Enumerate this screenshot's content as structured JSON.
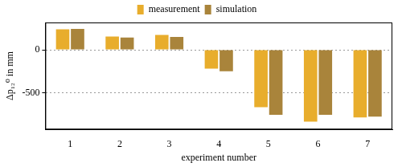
{
  "chart_data": {
    "type": "bar",
    "x_label": "experiment number",
    "y_label": "Δp₁₂⁰ in mm",
    "categories": [
      "1",
      "2",
      "3",
      "4",
      "5",
      "6",
      "7"
    ],
    "series": [
      {
        "name": "measurement",
        "color": "#e8ad2c",
        "values": [
          240,
          155,
          175,
          -220,
          -670,
          -840,
          -790
        ]
      },
      {
        "name": "simulation",
        "color": "#a9843b",
        "values": [
          245,
          145,
          150,
          -250,
          -760,
          -760,
          -780
        ]
      }
    ],
    "ylim": [
      -930,
      320
    ],
    "yticks": [
      -500,
      0
    ],
    "grid": true,
    "legend": "top"
  }
}
